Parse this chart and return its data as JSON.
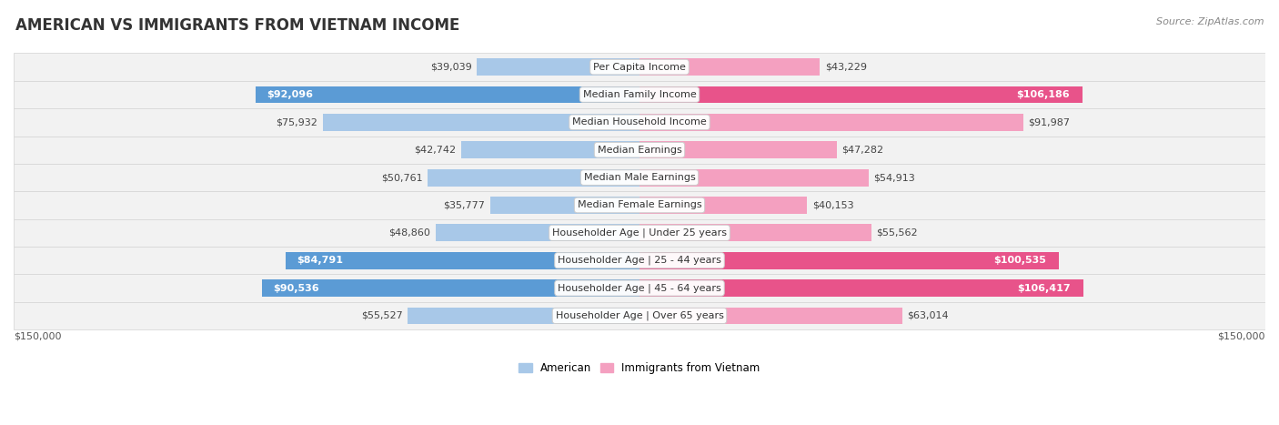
{
  "title": "AMERICAN VS IMMIGRANTS FROM VIETNAM INCOME",
  "source": "Source: ZipAtlas.com",
  "categories": [
    "Per Capita Income",
    "Median Family Income",
    "Median Household Income",
    "Median Earnings",
    "Median Male Earnings",
    "Median Female Earnings",
    "Householder Age | Under 25 years",
    "Householder Age | 25 - 44 years",
    "Householder Age | 45 - 64 years",
    "Householder Age | Over 65 years"
  ],
  "american_values": [
    39039,
    92096,
    75932,
    42742,
    50761,
    35777,
    48860,
    84791,
    90536,
    55527
  ],
  "vietnam_values": [
    43229,
    106186,
    91987,
    47282,
    54913,
    40153,
    55562,
    100535,
    106417,
    63014
  ],
  "american_labels": [
    "$39,039",
    "$92,096",
    "$75,932",
    "$42,742",
    "$50,761",
    "$35,777",
    "$48,860",
    "$84,791",
    "$90,536",
    "$55,527"
  ],
  "vietnam_labels": [
    "$43,229",
    "$106,186",
    "$91,987",
    "$47,282",
    "$54,913",
    "$40,153",
    "$55,562",
    "$100,535",
    "$106,417",
    "$63,014"
  ],
  "american_color_light": "#a8c8e8",
  "american_color_dark": "#5b9bd5",
  "vietnam_color_light": "#f4a0c0",
  "vietnam_color_dark": "#e8538a",
  "max_value": 150000,
  "legend_american": "American",
  "legend_vietnam": "Immigrants from Vietnam",
  "title_fontsize": 12,
  "label_fontsize": 8,
  "category_fontsize": 8,
  "axis_label": "$150,000",
  "am_dark_threshold": 0.52,
  "vn_dark_threshold": 0.62
}
